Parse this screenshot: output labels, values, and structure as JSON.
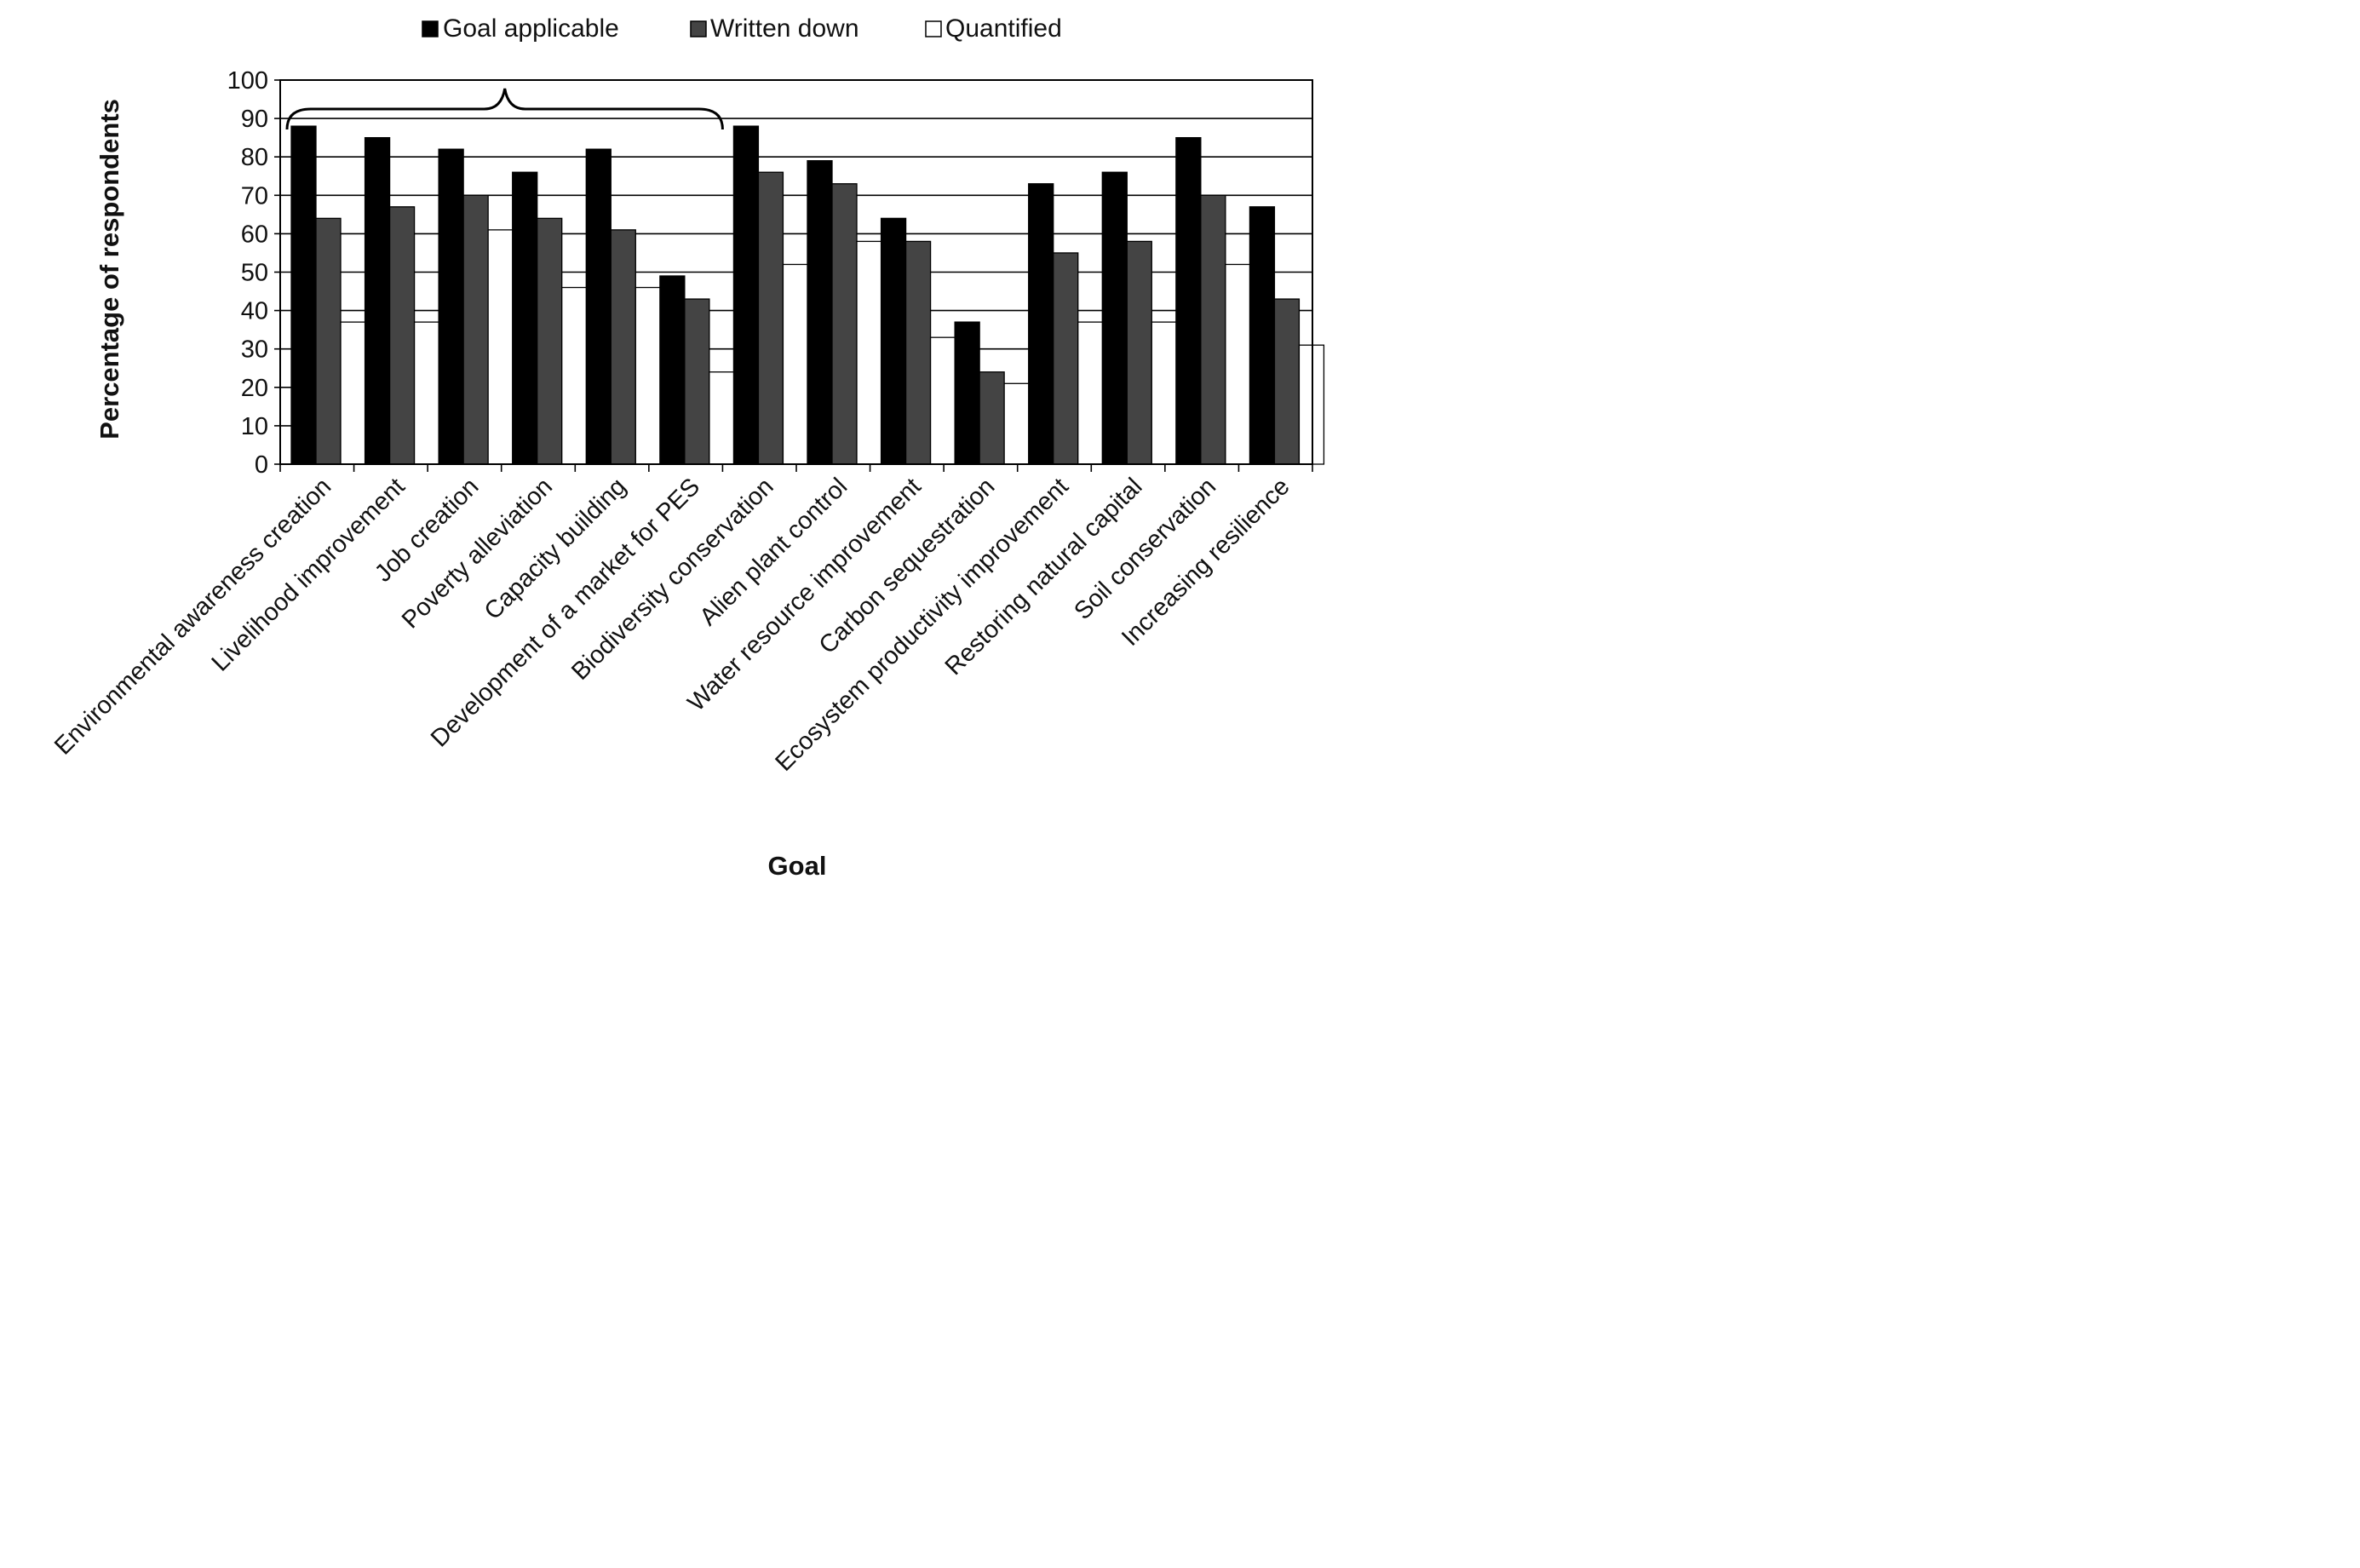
{
  "chart_data": {
    "type": "bar",
    "title": "",
    "xlabel": "Goal",
    "ylabel": "Percentage of respondents",
    "ylim": [
      0,
      100
    ],
    "yticks": [
      0,
      10,
      20,
      30,
      40,
      50,
      60,
      70,
      80,
      90,
      100
    ],
    "grid": "horizontal",
    "legend_position": "top-center",
    "categories": [
      "Environmental awareness creation",
      "Livelihood improvement",
      "Job creation",
      "Poverty alleviation",
      "Capacity building",
      "Development of a market for PES",
      "Biodiversity conservation",
      "Alien plant control",
      "Water resource improvement",
      "Carbon sequestration",
      "Ecosystem productivity improvement",
      "Restoring natural capital",
      "Soil conservation",
      "Increasing resilience"
    ],
    "series": [
      {
        "name": "Goal applicable",
        "color": "#000000",
        "values": [
          88,
          85,
          82,
          76,
          82,
          49,
          88,
          79,
          64,
          37,
          73,
          76,
          85,
          67
        ]
      },
      {
        "name": "Written down",
        "color": "#444444",
        "values": [
          64,
          67,
          70,
          64,
          61,
          43,
          76,
          73,
          58,
          24,
          55,
          58,
          70,
          43
        ]
      },
      {
        "name": "Quantified",
        "color": "#ffffff",
        "values": [
          37,
          37,
          61,
          46,
          46,
          24,
          52,
          58,
          33,
          21,
          37,
          37,
          52,
          31
        ]
      }
    ],
    "bracket_span": [
      "Environmental awareness creation",
      "Development of a market for PES"
    ]
  }
}
